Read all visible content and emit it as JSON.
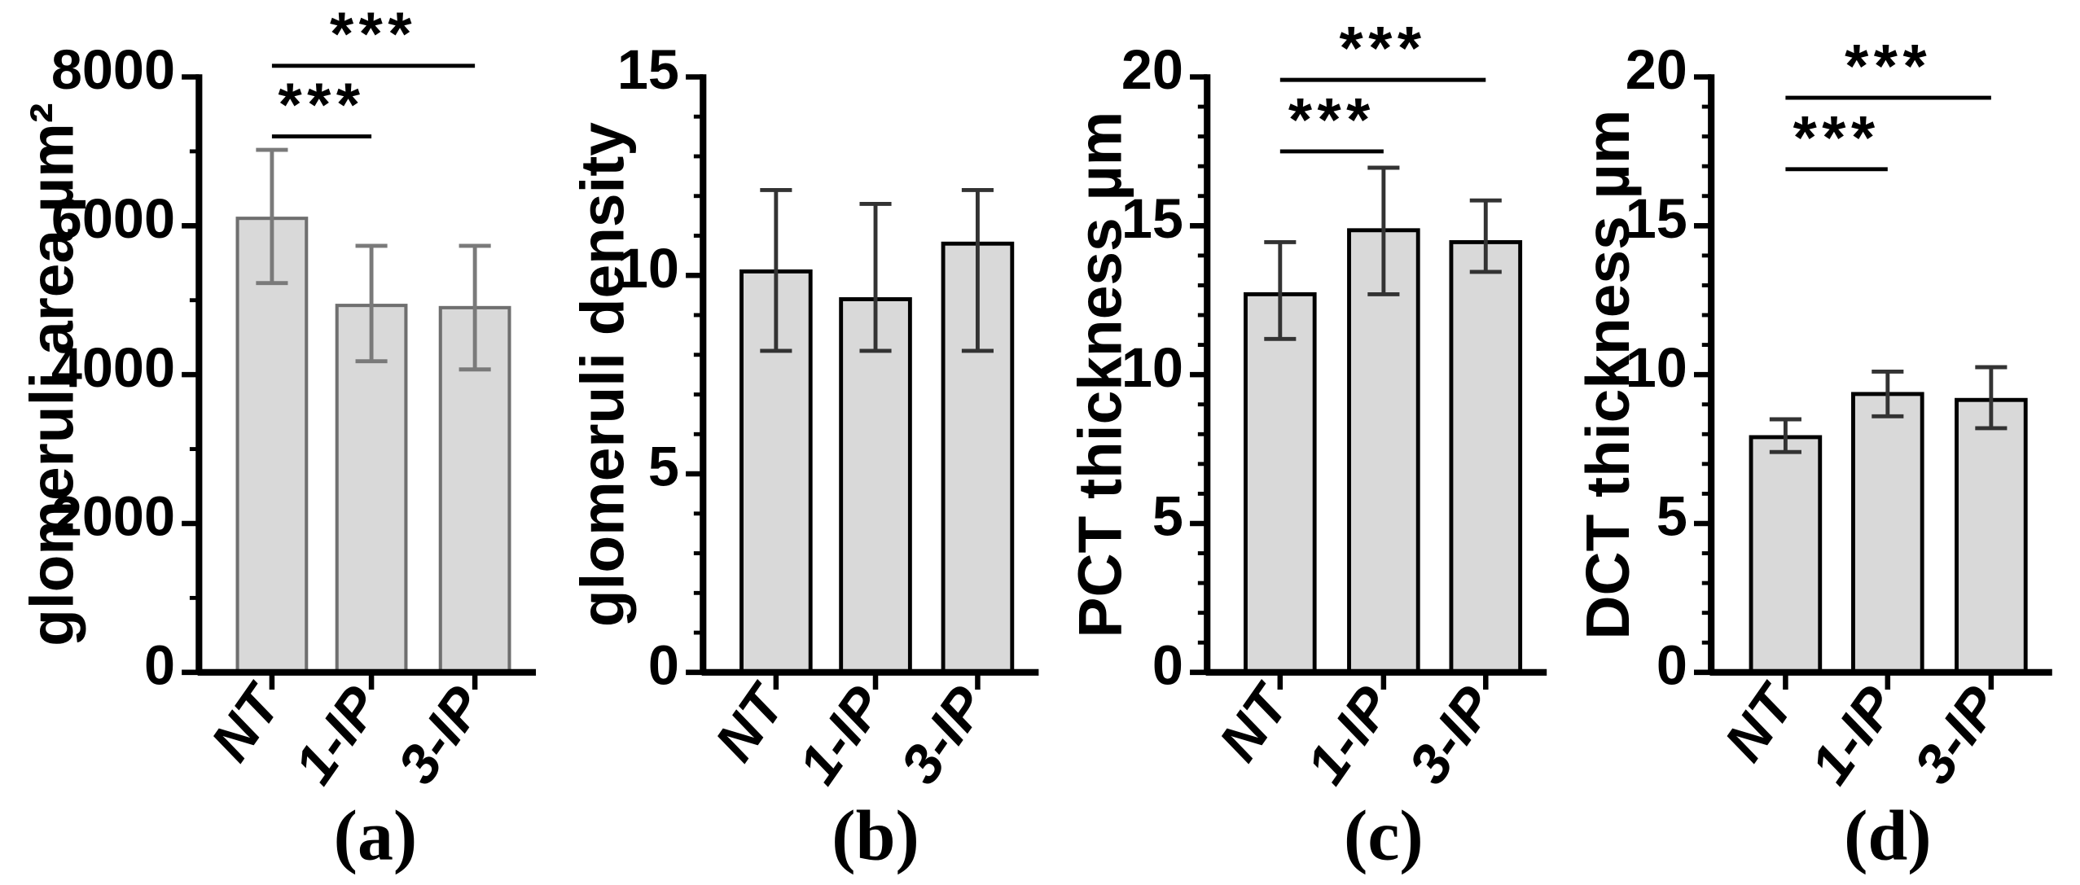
{
  "chart_data": [
    {
      "type": "bar",
      "panel_label": "(a)",
      "ylabel": "glomeruli area µm²",
      "categories": [
        "NT",
        "1-IP",
        "3-IP"
      ],
      "values": [
        6100,
        4930,
        4900
      ],
      "error_low": [
        5230,
        4180,
        4070
      ],
      "error_high": [
        7020,
        5730,
        5730
      ],
      "ylim": [
        0,
        8000
      ],
      "yticks": [
        0,
        2000,
        4000,
        6000,
        8000
      ],
      "minor_per_major": 2,
      "dark_outline": false,
      "significance": [
        {
          "from": 0,
          "to": 1,
          "level": 7200,
          "label": "***"
        },
        {
          "from": 0,
          "to": 2,
          "level": 8150,
          "label": "***"
        }
      ]
    },
    {
      "type": "bar",
      "panel_label": "(b)",
      "ylabel": "glomeruli density",
      "categories": [
        "NT",
        "1-IP",
        "3-IP"
      ],
      "values": [
        10.1,
        9.4,
        10.8
      ],
      "error_low": [
        8.1,
        8.1,
        8.1
      ],
      "error_high": [
        12.15,
        11.8,
        12.15
      ],
      "ylim": [
        0,
        15
      ],
      "yticks": [
        0,
        5,
        10,
        15
      ],
      "minor_per_major": 5,
      "dark_outline": true,
      "significance": []
    },
    {
      "type": "bar",
      "panel_label": "(c)",
      "ylabel": "PCT thickness µm",
      "categories": [
        "NT",
        "1-IP",
        "3-IP"
      ],
      "values": [
        12.7,
        14.85,
        14.45
      ],
      "error_low": [
        11.2,
        12.7,
        13.45
      ],
      "error_high": [
        14.45,
        16.95,
        15.85
      ],
      "ylim": [
        0,
        20
      ],
      "yticks": [
        0,
        5,
        10,
        15,
        20
      ],
      "minor_per_major": 5,
      "dark_outline": true,
      "significance": [
        {
          "from": 0,
          "to": 1,
          "level": 17.5,
          "label": "***"
        },
        {
          "from": 0,
          "to": 2,
          "level": 19.9,
          "label": "***"
        }
      ]
    },
    {
      "type": "bar",
      "panel_label": "(d)",
      "ylabel": "DCT thickness µm",
      "categories": [
        "NT",
        "1-IP",
        "3-IP"
      ],
      "values": [
        7.9,
        9.35,
        9.15
      ],
      "error_low": [
        7.4,
        8.6,
        8.2
      ],
      "error_high": [
        8.5,
        10.1,
        10.25
      ],
      "ylim": [
        0,
        20
      ],
      "yticks": [
        0,
        5,
        10,
        15,
        20
      ],
      "minor_per_major": 5,
      "dark_outline": true,
      "significance": [
        {
          "from": 0,
          "to": 1,
          "level": 16.9,
          "label": "***"
        },
        {
          "from": 0,
          "to": 2,
          "level": 19.3,
          "label": "***"
        }
      ]
    }
  ]
}
